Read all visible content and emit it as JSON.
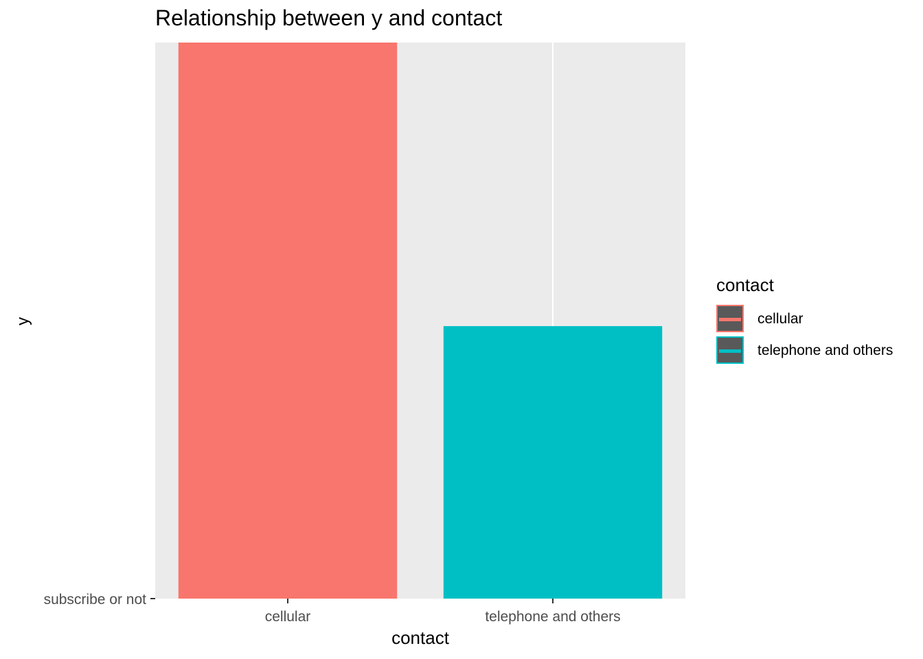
{
  "chart_data": {
    "type": "bar",
    "title": "Relationship between y and contact",
    "xlabel": "contact",
    "ylabel": "y",
    "categories": [
      "cellular",
      "telephone and others"
    ],
    "values": [
      1.0,
      0.49
    ],
    "y_tick_labels": [
      "subscribe or not"
    ],
    "legend": {
      "title": "contact",
      "position": "right",
      "entries": [
        {
          "label": "cellular",
          "color": "#F8766D"
        },
        {
          "label": "telephone and others",
          "color": "#00BFC4"
        }
      ]
    },
    "colors": [
      "#F8766D",
      "#00BFC4"
    ],
    "panel_background": "#EBEBEB",
    "grid": true
  }
}
